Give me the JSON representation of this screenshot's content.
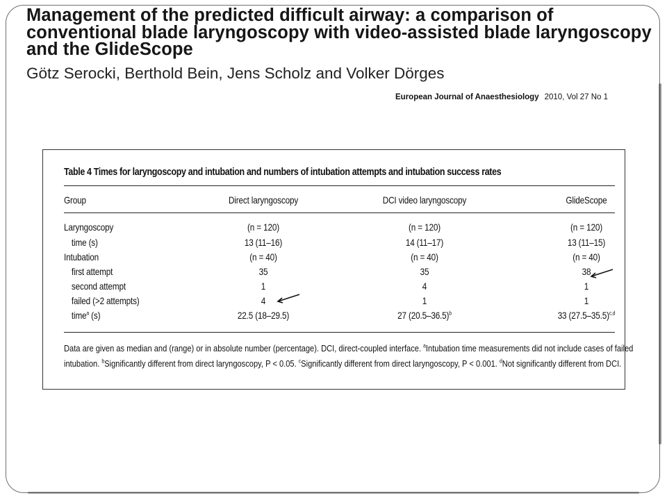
{
  "paper": {
    "title": "Management of the predicted difficult airway: a comparison of conventional blade laryngoscopy with video-assisted blade laryngoscopy and the GlideScope",
    "authors": "Götz Serocki, Berthold Bein, Jens Scholz and Volker Dörges",
    "journal": "European Journal of Anaesthesiology",
    "issue": "2010, Vol 27 No 1"
  },
  "table": {
    "caption": "Table 4   Times for laryngoscopy and intubation and numbers of intubation attempts and intubation success rates",
    "headers": [
      "Group",
      "Direct laryngoscopy",
      "DCI video laryngoscopy",
      "GlideScope"
    ],
    "rows": [
      {
        "label": "Laryngoscopy",
        "label_note": "",
        "label_tail": "",
        "indent": false,
        "direct": "(n = 120)",
        "direct_sup": "",
        "dci": "(n = 120)",
        "dci_sup": "",
        "glide": "(n = 120)",
        "glide_sup": ""
      },
      {
        "label": "time (s)",
        "label_note": "",
        "label_tail": "",
        "indent": true,
        "direct": "13 (11–16)",
        "direct_sup": "",
        "dci": "14 (11–17)",
        "dci_sup": "",
        "glide": "13 (11–15)",
        "glide_sup": ""
      },
      {
        "label": "Intubation",
        "label_note": "",
        "label_tail": "",
        "indent": false,
        "direct": "(n = 40)",
        "direct_sup": "",
        "dci": "(n = 40)",
        "dci_sup": "",
        "glide": "(n = 40)",
        "glide_sup": ""
      },
      {
        "label": "first attempt",
        "label_note": "",
        "label_tail": "",
        "indent": true,
        "direct": "35",
        "direct_sup": "",
        "dci": "35",
        "dci_sup": "",
        "glide": "38",
        "glide_sup": ""
      },
      {
        "label": "second attempt",
        "label_note": "",
        "label_tail": "",
        "indent": true,
        "direct": "1",
        "direct_sup": "",
        "dci": "4",
        "dci_sup": "",
        "glide": "1",
        "glide_sup": ""
      },
      {
        "label": "failed (>2 attempts)",
        "label_note": "",
        "label_tail": "",
        "indent": true,
        "direct": "4",
        "direct_sup": "",
        "dci": "1",
        "dci_sup": "",
        "glide": "1",
        "glide_sup": ""
      },
      {
        "label": "time",
        "label_note": "a",
        "label_tail": " (s)",
        "indent": true,
        "direct": "22.5 (18–29.5)",
        "direct_sup": "",
        "dci": "27 (20.5–36.5)",
        "dci_sup": "b",
        "glide": "33 (27.5–35.5)",
        "glide_sup": "c,d"
      }
    ],
    "footnote": {
      "line1_a": "Data are given as median and (range) or in absolute number (percentage). DCI, direct-coupled interface. ",
      "sup_a": "a",
      "line1_b": "Intubation time measurements did not include cases of failed",
      "line2_a": "intubation. ",
      "sup_b": "b",
      "line2_b": "Significantly different from direct laryngoscopy, P < 0.05. ",
      "sup_c": "c",
      "line2_c": "Significantly different from direct laryngoscopy, P < 0.001. ",
      "sup_d": "d",
      "line2_d": "Not significantly different from DCI."
    }
  },
  "colors": {
    "frame": "#6e6e6e",
    "text": "#111111"
  },
  "icons": [
    "arrow-glidescope-first-attempt-icon",
    "arrow-direct-failed-icon"
  ]
}
